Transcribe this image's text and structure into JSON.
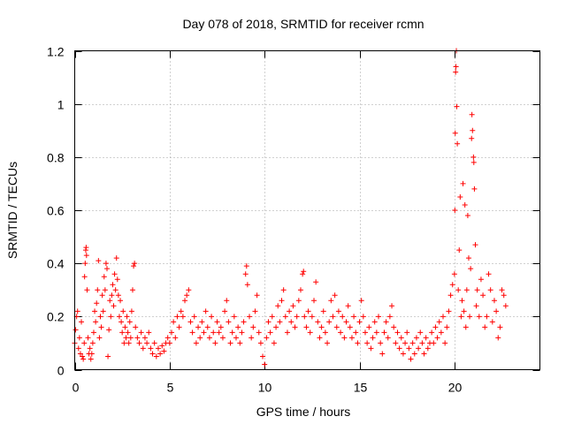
{
  "chart_data": {
    "type": "scatter",
    "title": "Day 078 of 2018, SRMTID for receiver rcmn",
    "xlabel": "GPS time / hours",
    "ylabel": "SRMTID / TECUs",
    "xlim": [
      0,
      24.5
    ],
    "ylim": [
      0,
      1.2
    ],
    "xticks": [
      0,
      5,
      10,
      15,
      20
    ],
    "xtick_labels": [
      "0",
      "5",
      "10",
      "15",
      "20"
    ],
    "yticks": [
      0,
      0.2,
      0.4,
      0.6,
      0.8,
      1.0,
      1.2
    ],
    "ytick_labels": [
      "0",
      "0.2",
      "0.4",
      "0.6",
      "0.8",
      "1",
      "1.2"
    ],
    "grid": true,
    "marker": "+",
    "series": [
      {
        "name": "SRMTID",
        "color": "#ff0000",
        "points": [
          [
            0.0,
            0.1
          ],
          [
            0.05,
            0.15
          ],
          [
            0.1,
            0.2
          ],
          [
            0.15,
            0.22
          ],
          [
            0.2,
            0.08
          ],
          [
            0.25,
            0.12
          ],
          [
            0.3,
            0.06
          ],
          [
            0.35,
            0.18
          ],
          [
            0.4,
            0.05
          ],
          [
            0.45,
            0.04
          ],
          [
            0.5,
            0.1
          ],
          [
            0.52,
            0.35
          ],
          [
            0.55,
            0.4
          ],
          [
            0.58,
            0.45
          ],
          [
            0.6,
            0.46
          ],
          [
            0.62,
            0.43
          ],
          [
            0.65,
            0.3
          ],
          [
            0.7,
            0.12
          ],
          [
            0.75,
            0.06
          ],
          [
            0.8,
            0.08
          ],
          [
            0.85,
            0.04
          ],
          [
            0.9,
            0.06
          ],
          [
            0.95,
            0.1
          ],
          [
            1.0,
            0.14
          ],
          [
            1.05,
            0.22
          ],
          [
            1.1,
            0.18
          ],
          [
            1.15,
            0.25
          ],
          [
            1.2,
            0.3
          ],
          [
            1.25,
            0.41
          ],
          [
            1.3,
            0.12
          ],
          [
            1.35,
            0.2
          ],
          [
            1.4,
            0.16
          ],
          [
            1.45,
            0.28
          ],
          [
            1.5,
            0.22
          ],
          [
            1.55,
            0.35
          ],
          [
            1.6,
            0.3
          ],
          [
            1.65,
            0.4
          ],
          [
            1.7,
            0.38
          ],
          [
            1.75,
            0.05
          ],
          [
            1.8,
            0.15
          ],
          [
            1.85,
            0.26
          ],
          [
            1.9,
            0.2
          ],
          [
            1.95,
            0.28
          ],
          [
            2.0,
            0.32
          ],
          [
            2.05,
            0.24
          ],
          [
            2.1,
            0.36
          ],
          [
            2.15,
            0.3
          ],
          [
            2.2,
            0.42
          ],
          [
            2.25,
            0.34
          ],
          [
            2.3,
            0.28
          ],
          [
            2.35,
            0.2
          ],
          [
            2.4,
            0.26
          ],
          [
            2.45,
            0.18
          ],
          [
            2.5,
            0.14
          ],
          [
            2.55,
            0.22
          ],
          [
            2.6,
            0.1
          ],
          [
            2.65,
            0.16
          ],
          [
            2.7,
            0.12
          ],
          [
            2.75,
            0.2
          ],
          [
            2.8,
            0.14
          ],
          [
            2.85,
            0.1
          ],
          [
            2.9,
            0.18
          ],
          [
            2.95,
            0.12
          ],
          [
            3.0,
            0.22
          ],
          [
            3.05,
            0.3
          ],
          [
            3.1,
            0.39
          ],
          [
            3.15,
            0.4
          ],
          [
            3.2,
            0.16
          ],
          [
            3.3,
            0.12
          ],
          [
            3.4,
            0.1
          ],
          [
            3.5,
            0.14
          ],
          [
            3.6,
            0.08
          ],
          [
            3.7,
            0.12
          ],
          [
            3.8,
            0.1
          ],
          [
            3.9,
            0.14
          ],
          [
            4.0,
            0.08
          ],
          [
            4.1,
            0.06
          ],
          [
            4.2,
            0.1
          ],
          [
            4.3,
            0.05
          ],
          [
            4.4,
            0.08
          ],
          [
            4.5,
            0.06
          ],
          [
            4.6,
            0.09
          ],
          [
            4.7,
            0.07
          ],
          [
            4.8,
            0.1
          ],
          [
            4.9,
            0.12
          ],
          [
            5.0,
            0.1
          ],
          [
            5.1,
            0.14
          ],
          [
            5.2,
            0.18
          ],
          [
            5.3,
            0.12
          ],
          [
            5.4,
            0.2
          ],
          [
            5.5,
            0.16
          ],
          [
            5.6,
            0.22
          ],
          [
            5.7,
            0.2
          ],
          [
            5.8,
            0.26
          ],
          [
            5.9,
            0.28
          ],
          [
            6.0,
            0.3
          ],
          [
            6.1,
            0.18
          ],
          [
            6.2,
            0.14
          ],
          [
            6.3,
            0.2
          ],
          [
            6.4,
            0.1
          ],
          [
            6.5,
            0.16
          ],
          [
            6.6,
            0.12
          ],
          [
            6.7,
            0.18
          ],
          [
            6.8,
            0.14
          ],
          [
            6.9,
            0.22
          ],
          [
            7.0,
            0.16
          ],
          [
            7.1,
            0.12
          ],
          [
            7.2,
            0.2
          ],
          [
            7.3,
            0.14
          ],
          [
            7.4,
            0.1
          ],
          [
            7.5,
            0.18
          ],
          [
            7.6,
            0.14
          ],
          [
            7.7,
            0.16
          ],
          [
            7.8,
            0.12
          ],
          [
            7.9,
            0.22
          ],
          [
            8.0,
            0.26
          ],
          [
            8.1,
            0.18
          ],
          [
            8.2,
            0.1
          ],
          [
            8.3,
            0.14
          ],
          [
            8.4,
            0.2
          ],
          [
            8.5,
            0.12
          ],
          [
            8.6,
            0.16
          ],
          [
            8.7,
            0.1
          ],
          [
            8.8,
            0.14
          ],
          [
            8.9,
            0.18
          ],
          [
            9.0,
            0.36
          ],
          [
            9.05,
            0.39
          ],
          [
            9.1,
            0.32
          ],
          [
            9.2,
            0.2
          ],
          [
            9.3,
            0.12
          ],
          [
            9.4,
            0.16
          ],
          [
            9.5,
            0.22
          ],
          [
            9.6,
            0.28
          ],
          [
            9.7,
            0.14
          ],
          [
            9.8,
            0.1
          ],
          [
            9.9,
            0.05
          ],
          [
            10.0,
            0.02
          ],
          [
            10.1,
            0.12
          ],
          [
            10.2,
            0.18
          ],
          [
            10.3,
            0.14
          ],
          [
            10.4,
            0.2
          ],
          [
            10.5,
            0.1
          ],
          [
            10.6,
            0.16
          ],
          [
            10.7,
            0.24
          ],
          [
            10.8,
            0.18
          ],
          [
            10.9,
            0.26
          ],
          [
            11.0,
            0.3
          ],
          [
            11.1,
            0.2
          ],
          [
            11.2,
            0.14
          ],
          [
            11.3,
            0.22
          ],
          [
            11.4,
            0.18
          ],
          [
            11.5,
            0.24
          ],
          [
            11.6,
            0.16
          ],
          [
            11.7,
            0.2
          ],
          [
            11.8,
            0.26
          ],
          [
            11.9,
            0.3
          ],
          [
            12.0,
            0.36
          ],
          [
            12.05,
            0.37
          ],
          [
            12.1,
            0.2
          ],
          [
            12.2,
            0.16
          ],
          [
            12.3,
            0.22
          ],
          [
            12.4,
            0.14
          ],
          [
            12.5,
            0.2
          ],
          [
            12.6,
            0.26
          ],
          [
            12.7,
            0.33
          ],
          [
            12.8,
            0.18
          ],
          [
            12.9,
            0.12
          ],
          [
            13.0,
            0.16
          ],
          [
            13.1,
            0.22
          ],
          [
            13.2,
            0.14
          ],
          [
            13.3,
            0.1
          ],
          [
            13.4,
            0.18
          ],
          [
            13.5,
            0.26
          ],
          [
            13.6,
            0.2
          ],
          [
            13.7,
            0.28
          ],
          [
            13.8,
            0.16
          ],
          [
            13.9,
            0.22
          ],
          [
            14.0,
            0.14
          ],
          [
            14.1,
            0.2
          ],
          [
            14.2,
            0.12
          ],
          [
            14.3,
            0.18
          ],
          [
            14.4,
            0.24
          ],
          [
            14.5,
            0.16
          ],
          [
            14.6,
            0.12
          ],
          [
            14.7,
            0.2
          ],
          [
            14.8,
            0.14
          ],
          [
            14.9,
            0.1
          ],
          [
            15.0,
            0.18
          ],
          [
            15.1,
            0.26
          ],
          [
            15.2,
            0.2
          ],
          [
            15.3,
            0.14
          ],
          [
            15.4,
            0.1
          ],
          [
            15.5,
            0.16
          ],
          [
            15.6,
            0.08
          ],
          [
            15.7,
            0.12
          ],
          [
            15.8,
            0.18
          ],
          [
            15.9,
            0.14
          ],
          [
            16.0,
            0.2
          ],
          [
            16.1,
            0.1
          ],
          [
            16.2,
            0.06
          ],
          [
            16.3,
            0.14
          ],
          [
            16.4,
            0.18
          ],
          [
            16.5,
            0.12
          ],
          [
            16.6,
            0.2
          ],
          [
            16.7,
            0.24
          ],
          [
            16.8,
            0.16
          ],
          [
            16.9,
            0.1
          ],
          [
            17.0,
            0.14
          ],
          [
            17.1,
            0.08
          ],
          [
            17.2,
            0.12
          ],
          [
            17.3,
            0.06
          ],
          [
            17.4,
            0.1
          ],
          [
            17.5,
            0.14
          ],
          [
            17.6,
            0.08
          ],
          [
            17.7,
            0.04
          ],
          [
            17.8,
            0.1
          ],
          [
            17.9,
            0.06
          ],
          [
            18.0,
            0.12
          ],
          [
            18.1,
            0.08
          ],
          [
            18.2,
            0.14
          ],
          [
            18.3,
            0.1
          ],
          [
            18.4,
            0.06
          ],
          [
            18.5,
            0.12
          ],
          [
            18.6,
            0.08
          ],
          [
            18.7,
            0.1
          ],
          [
            18.8,
            0.14
          ],
          [
            18.9,
            0.1
          ],
          [
            19.0,
            0.16
          ],
          [
            19.1,
            0.12
          ],
          [
            19.2,
            0.18
          ],
          [
            19.3,
            0.14
          ],
          [
            19.4,
            0.2
          ],
          [
            19.5,
            0.1
          ],
          [
            19.6,
            0.16
          ],
          [
            19.7,
            0.22
          ],
          [
            19.8,
            0.28
          ],
          [
            19.9,
            0.32
          ],
          [
            20.0,
            0.36
          ],
          [
            20.02,
            0.6
          ],
          [
            20.04,
            0.89
          ],
          [
            20.06,
            1.12
          ],
          [
            20.08,
            1.14
          ],
          [
            20.1,
            1.2
          ],
          [
            20.12,
            0.99
          ],
          [
            20.15,
            0.85
          ],
          [
            20.2,
            0.3
          ],
          [
            20.25,
            0.45
          ],
          [
            20.3,
            0.65
          ],
          [
            20.35,
            0.2
          ],
          [
            20.4,
            0.26
          ],
          [
            20.45,
            0.7
          ],
          [
            20.5,
            0.22
          ],
          [
            20.55,
            0.62
          ],
          [
            20.6,
            0.16
          ],
          [
            20.65,
            0.3
          ],
          [
            20.7,
            0.58
          ],
          [
            20.75,
            0.42
          ],
          [
            20.8,
            0.2
          ],
          [
            20.85,
            0.38
          ],
          [
            20.9,
            0.87
          ],
          [
            20.92,
            0.96
          ],
          [
            20.95,
            0.9
          ],
          [
            21.0,
            0.8
          ],
          [
            21.02,
            0.78
          ],
          [
            21.05,
            0.68
          ],
          [
            21.1,
            0.47
          ],
          [
            21.15,
            0.24
          ],
          [
            21.2,
            0.3
          ],
          [
            21.3,
            0.2
          ],
          [
            21.4,
            0.34
          ],
          [
            21.5,
            0.28
          ],
          [
            21.6,
            0.16
          ],
          [
            21.7,
            0.2
          ],
          [
            21.8,
            0.36
          ],
          [
            21.9,
            0.3
          ],
          [
            22.0,
            0.18
          ],
          [
            22.1,
            0.26
          ],
          [
            22.2,
            0.22
          ],
          [
            22.3,
            0.12
          ],
          [
            22.4,
            0.16
          ],
          [
            22.5,
            0.3
          ],
          [
            22.6,
            0.28
          ],
          [
            22.7,
            0.24
          ]
        ]
      }
    ]
  }
}
